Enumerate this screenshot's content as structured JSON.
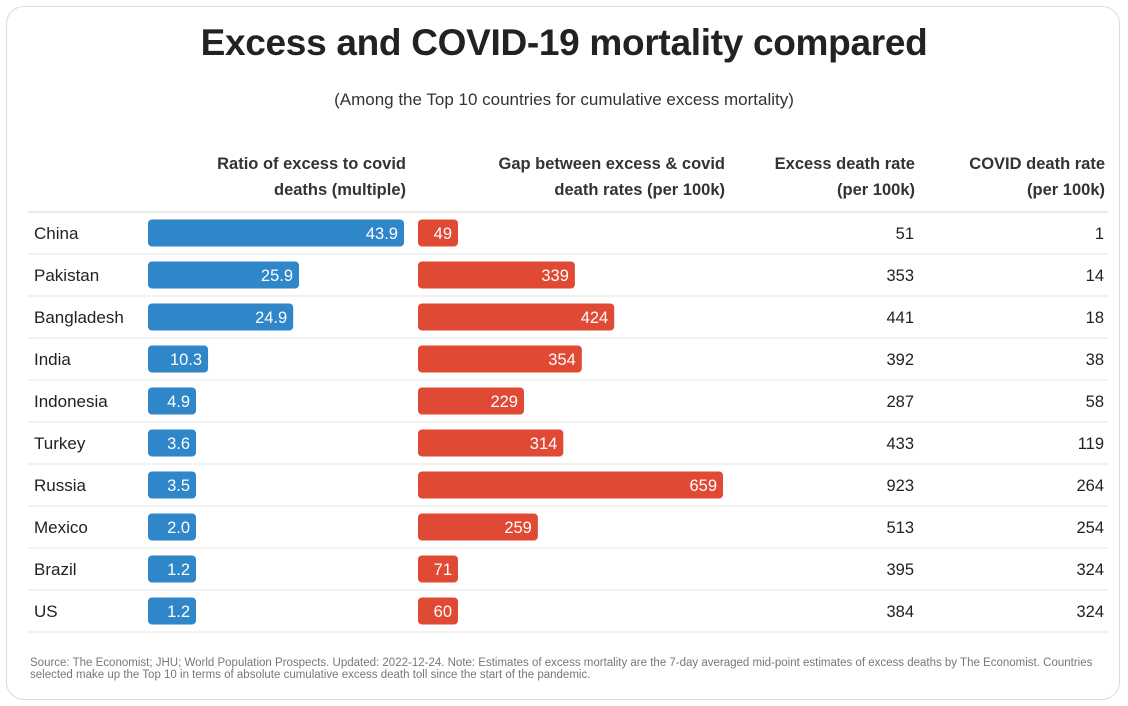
{
  "title": "Excess and COVID-19 mortality compared",
  "subtitle": "(Among the Top 10 countries for cumulative excess mortality)",
  "columns": {
    "ratio": "Ratio of excess to covid\ndeaths (multiple)",
    "gap": "Gap between excess & covid\ndeath rates (per 100k)",
    "excess": "Excess death rate\n(per 100k)",
    "covid": "COVID death rate\n(per 100k)"
  },
  "footnote": "Source: The Economist; JHU; World Population Prospects. Updated: 2022-12-24. Note: Estimates of excess mortality are the 7-day averaged mid-point estimates of excess deaths by The Economist. Countries selected make up the Top 10 in terms of absolute cumulative excess death toll since the start of the pandemic.",
  "colors": {
    "ratio_bar": "#2f86c8",
    "gap_bar": "#e04a35"
  },
  "chart_data": {
    "type": "bar",
    "categories": [
      "China",
      "Pakistan",
      "Bangladesh",
      "India",
      "Indonesia",
      "Turkey",
      "Russia",
      "Mexico",
      "Brazil",
      "US"
    ],
    "series": [
      {
        "name": "Ratio of excess to covid deaths (multiple)",
        "values": [
          "43.9",
          "25.9",
          "24.9",
          "10.3",
          "4.9",
          "3.6",
          "3.5",
          "2.0",
          "1.2",
          "1.2"
        ]
      },
      {
        "name": "Gap between excess & covid death rates (per 100k)",
        "values": [
          49,
          339,
          424,
          354,
          229,
          314,
          659,
          259,
          71,
          60
        ]
      },
      {
        "name": "Excess death rate (per 100k)",
        "values": [
          51,
          353,
          441,
          392,
          287,
          433,
          923,
          513,
          395,
          384
        ]
      },
      {
        "name": "COVID death rate (per 100k)",
        "values": [
          1,
          14,
          18,
          38,
          58,
          119,
          264,
          254,
          324,
          324
        ]
      }
    ],
    "ratio_max": 43.9,
    "gap_max": 659
  }
}
